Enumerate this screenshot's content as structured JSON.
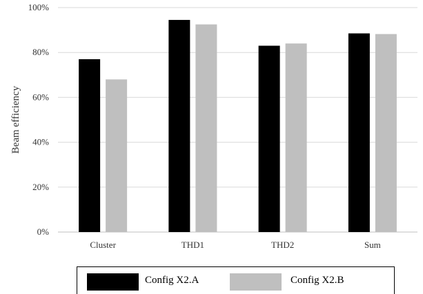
{
  "chart_data": {
    "type": "bar",
    "title": "",
    "xlabel": "",
    "ylabel": "Beam efficiency",
    "categories": [
      "Cluster",
      "THD1",
      "THD2",
      "Sum"
    ],
    "series": [
      {
        "name": "Config X2.A",
        "values": [
          0.77,
          0.945,
          0.83,
          0.885
        ],
        "color": "#000000"
      },
      {
        "name": "Config X2.B",
        "values": [
          0.68,
          0.925,
          0.84,
          0.882
        ],
        "color": "#bfbfbf"
      }
    ],
    "ylim": [
      0,
      1
    ],
    "yticks": [
      0,
      0.2,
      0.4,
      0.6,
      0.8,
      1.0
    ],
    "ytick_labels": [
      "0%",
      "20%",
      "40%",
      "60%",
      "80%",
      "100%"
    ],
    "grid": true,
    "grid_color": "#d9d9d9",
    "legend_position": "bottom"
  }
}
